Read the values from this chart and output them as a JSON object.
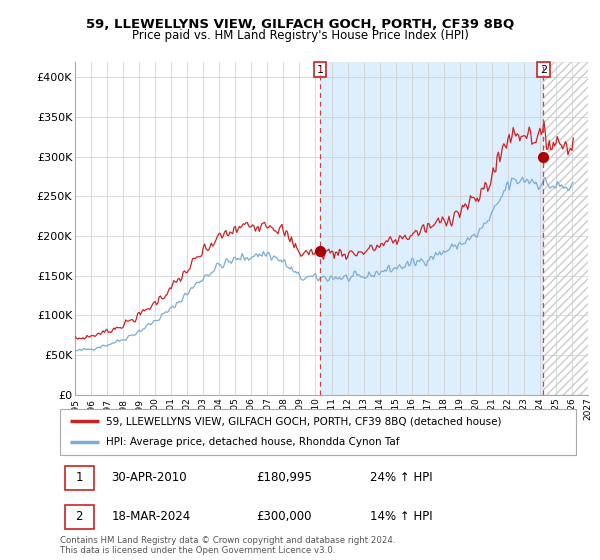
{
  "title": "59, LLEWELLYNS VIEW, GILFACH GOCH, PORTH, CF39 8BQ",
  "subtitle": "Price paid vs. HM Land Registry's House Price Index (HPI)",
  "ylim": [
    0,
    420000
  ],
  "yticks": [
    0,
    50000,
    100000,
    150000,
    200000,
    250000,
    300000,
    350000,
    400000
  ],
  "ytick_labels": [
    "£0",
    "£50K",
    "£100K",
    "£150K",
    "£200K",
    "£250K",
    "£300K",
    "£350K",
    "£400K"
  ],
  "hpi_color": "#7aaed6",
  "price_color": "#cc2222",
  "marker_color": "#aa0000",
  "grid_color": "#cccccc",
  "shade_color": "#ddeeff",
  "legend_label_price": "59, LLEWELLYNS VIEW, GILFACH GOCH, PORTH, CF39 8BQ (detached house)",
  "legend_label_hpi": "HPI: Average price, detached house, Rhondda Cynon Taf",
  "annotation1_date": "30-APR-2010",
  "annotation1_price": "£180,995",
  "annotation1_hpi": "24% ↑ HPI",
  "annotation1_year": 2010.29,
  "annotation1_value": 180995,
  "annotation2_date": "18-MAR-2024",
  "annotation2_price": "£300,000",
  "annotation2_hpi": "14% ↑ HPI",
  "annotation2_year": 2024.21,
  "annotation2_value": 300000,
  "footer": "Contains HM Land Registry data © Crown copyright and database right 2024.\nThis data is licensed under the Open Government Licence v3.0.",
  "xlim_left": 1995.0,
  "xlim_right": 2027.0
}
